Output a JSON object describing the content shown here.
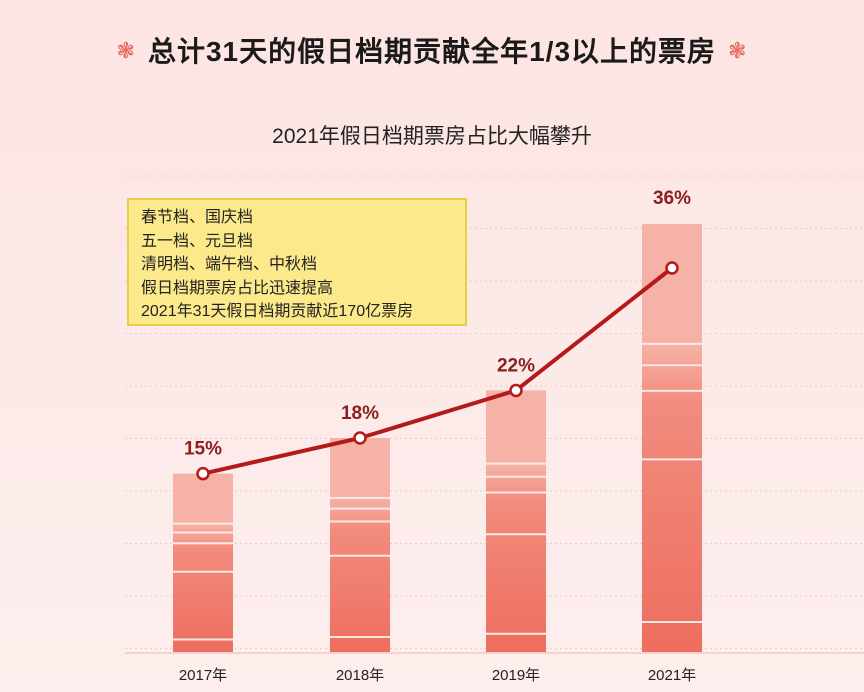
{
  "page_title": "总计31天的假日档期贡献全年1/3以上的票房",
  "decor": {
    "flower_glyph": "❃",
    "flower_color": "#e36a5f"
  },
  "note_lines": [
    "春节档、国庆档",
    "五一档、元旦档",
    "清明档、端午档、中秋档",
    "假日档期票房占比迅速提高",
    "2021年31天假日档期贡献近170亿票房"
  ],
  "colors": {
    "bar_light": "#f6b2a7",
    "bar_mid": "#f18c7e",
    "bar_dark": "#ee6e5f",
    "line": "#b51a1a",
    "label": "#8b2020",
    "note_bg": "#fbe98b"
  },
  "chart_data": {
    "type": "bar",
    "title": "2021年假日档期票房占比大幅攀升",
    "categories": [
      "2017年",
      "2018年",
      "2019年",
      "2021年"
    ],
    "values": [
      15,
      18,
      22,
      36
    ],
    "value_labels": [
      "15%",
      "18%",
      "22%",
      "36%"
    ],
    "unit": "%",
    "ylim": [
      0,
      36
    ],
    "overlay": "line connecting bar values",
    "grid": true,
    "legend": "none"
  }
}
